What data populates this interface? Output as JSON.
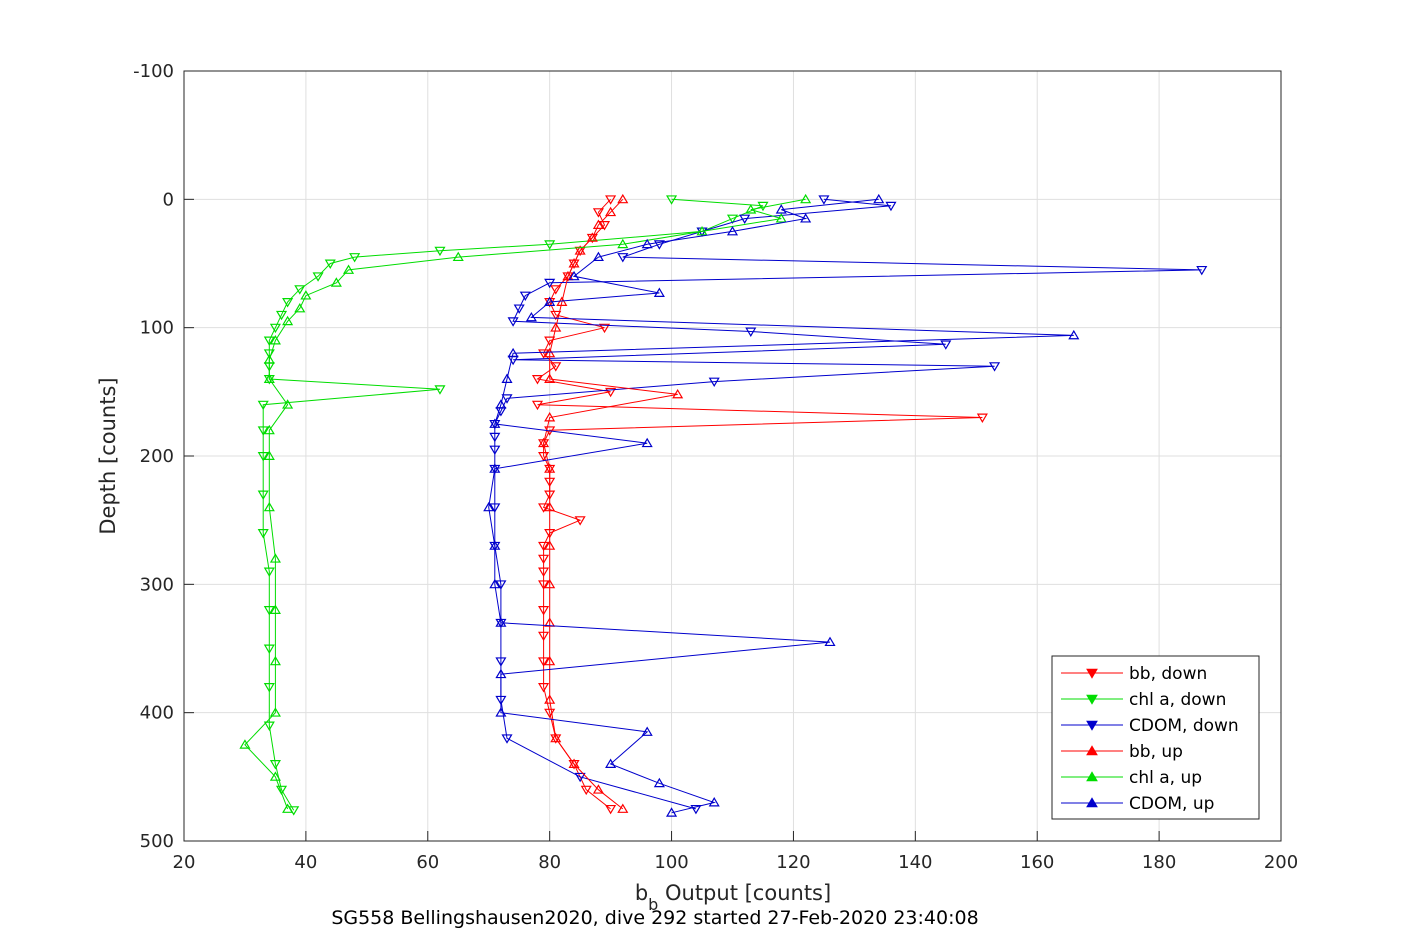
{
  "chart_data": {
    "type": "scatter",
    "xlabel_main": "b",
    "xlabel_sub": "b",
    "xlabel_rest": " Output [counts]",
    "ylabel": "Depth [counts]",
    "caption": "SG558 Bellingshausen2020, dive 292 started 27-Feb-2020 23:40:08",
    "xlim": [
      20,
      200
    ],
    "ylim": [
      -100,
      500
    ],
    "y_reversed": true,
    "grid": true,
    "legend_placement": "bottom-right",
    "x_ticks": [
      "20",
      "40",
      "60",
      "80",
      "100",
      "120",
      "140",
      "160",
      "180",
      "200"
    ],
    "y_ticks": [
      "-100",
      "0",
      "100",
      "200",
      "300",
      "400",
      "500"
    ],
    "series": [
      {
        "name": "bb, down",
        "color": "#ff0000",
        "marker": "triangle-down",
        "depth": [
          0,
          10,
          20,
          30,
          40,
          50,
          60,
          70,
          80,
          90,
          100,
          110,
          120,
          130,
          140,
          150,
          160,
          170,
          180,
          190,
          200,
          210,
          220,
          230,
          240,
          250,
          260,
          270,
          280,
          290,
          300,
          320,
          340,
          360,
          380,
          400,
          420,
          440,
          460,
          475
        ],
        "value": [
          90,
          88,
          89,
          87,
          85,
          84,
          83,
          81,
          80,
          81,
          89,
          80,
          79,
          81,
          78,
          90,
          78,
          151,
          80,
          79,
          79,
          80,
          80,
          80,
          79,
          85,
          80,
          79,
          79,
          79,
          79,
          79,
          79,
          79,
          79,
          80,
          81,
          84,
          86,
          90
        ]
      },
      {
        "name": "chl a, down",
        "color": "#00dd00",
        "marker": "triangle-down",
        "depth": [
          0,
          5,
          15,
          25,
          35,
          40,
          45,
          50,
          60,
          70,
          80,
          90,
          100,
          110,
          120,
          130,
          140,
          148,
          160,
          180,
          200,
          230,
          260,
          290,
          320,
          350,
          380,
          410,
          440,
          460,
          476
        ],
        "value": [
          100,
          115,
          110,
          105,
          80,
          62,
          48,
          44,
          42,
          39,
          37,
          36,
          35,
          34,
          34,
          34,
          34,
          62,
          33,
          33,
          33,
          33,
          33,
          34,
          34,
          34,
          34,
          34,
          35,
          36,
          38
        ]
      },
      {
        "name": "CDOM, down",
        "color": "#0000cc",
        "marker": "triangle-down",
        "depth": [
          0,
          5,
          15,
          25,
          35,
          45,
          55,
          65,
          75,
          85,
          95,
          103,
          113,
          125,
          130,
          142,
          155,
          165,
          175,
          185,
          195,
          210,
          240,
          270,
          300,
          330,
          360,
          390,
          420,
          450,
          475
        ],
        "value": [
          125,
          136,
          112,
          105,
          98,
          92,
          187,
          80,
          76,
          75,
          74,
          113,
          145,
          74,
          153,
          107,
          73,
          72,
          71,
          71,
          71,
          71,
          71,
          71,
          72,
          72,
          72,
          72,
          73,
          85,
          104
        ]
      },
      {
        "name": "bb, up",
        "color": "#ff0000",
        "marker": "triangle-up",
        "depth": [
          0,
          10,
          20,
          30,
          40,
          50,
          60,
          80,
          100,
          120,
          140,
          152,
          170,
          190,
          210,
          240,
          270,
          300,
          330,
          360,
          390,
          420,
          440,
          460,
          475
        ],
        "value": [
          92,
          90,
          88,
          87,
          85,
          84,
          83,
          82,
          81,
          80,
          80,
          101,
          80,
          79,
          80,
          80,
          80,
          80,
          80,
          80,
          80,
          81,
          84,
          88,
          92
        ]
      },
      {
        "name": "chl a, up",
        "color": "#00dd00",
        "marker": "triangle-up",
        "depth": [
          0,
          8,
          15,
          25,
          35,
          45,
          55,
          65,
          75,
          85,
          95,
          110,
          125,
          140,
          160,
          180,
          200,
          240,
          280,
          320,
          360,
          400,
          425,
          450,
          475
        ],
        "value": [
          122,
          113,
          118,
          105,
          92,
          65,
          47,
          45,
          40,
          39,
          37,
          35,
          34,
          34,
          37,
          34,
          34,
          34,
          35,
          35,
          35,
          35,
          30,
          35,
          37
        ]
      },
      {
        "name": "CDOM, up",
        "color": "#0000cc",
        "marker": "triangle-up",
        "depth": [
          0,
          8,
          15,
          25,
          35,
          45,
          60,
          73,
          80,
          92,
          106,
          120,
          140,
          160,
          175,
          190,
          210,
          240,
          270,
          300,
          330,
          345,
          370,
          400,
          415,
          440,
          455,
          470,
          478
        ],
        "value": [
          134,
          118,
          122,
          110,
          96,
          88,
          84,
          98,
          80,
          77,
          166,
          74,
          73,
          72,
          71,
          96,
          71,
          70,
          71,
          71,
          72,
          126,
          72,
          72,
          96,
          90,
          98,
          107,
          100
        ]
      }
    ]
  }
}
